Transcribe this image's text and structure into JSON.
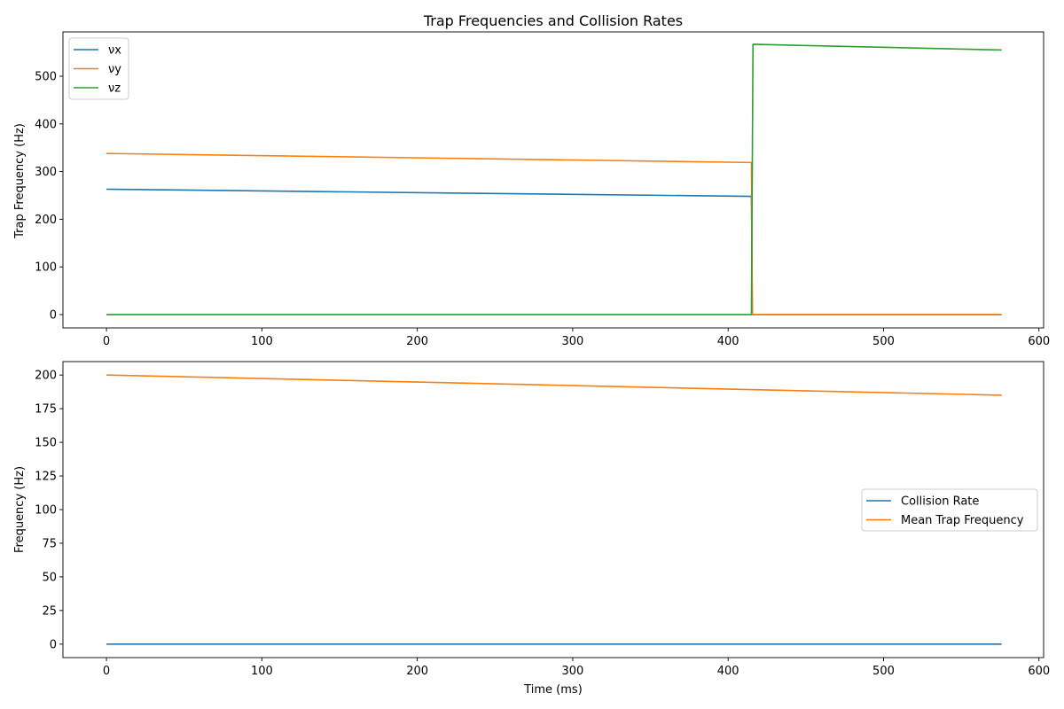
{
  "chart_data": [
    {
      "type": "line",
      "title": "Trap Frequencies and Collision Rates",
      "xlabel": "",
      "ylabel": "Trap Frequency (Hz)",
      "xlim": [
        -28,
        603
      ],
      "ylim": [
        -28,
        593
      ],
      "xticks": [
        0,
        100,
        200,
        300,
        400,
        500,
        600
      ],
      "yticks": [
        0,
        100,
        200,
        300,
        400,
        500
      ],
      "legend": "top-left",
      "series": [
        {
          "name": "νx",
          "color": "#1f77b4",
          "x": [
            0,
            415,
            415.6,
            576
          ],
          "y": [
            263,
            248,
            0,
            0
          ]
        },
        {
          "name": "νy",
          "color": "#ff7f0e",
          "x": [
            0,
            415,
            415.6,
            576
          ],
          "y": [
            338,
            319,
            0,
            0
          ]
        },
        {
          "name": "νz",
          "color": "#2ca02c",
          "x": [
            0,
            415,
            416,
            576
          ],
          "y": [
            0,
            0,
            567,
            555
          ]
        }
      ]
    },
    {
      "type": "line",
      "title": "",
      "xlabel": "Time (ms)",
      "ylabel": "Frequency (Hz)",
      "xlim": [
        -28,
        603
      ],
      "ylim": [
        -10,
        210
      ],
      "xticks": [
        0,
        100,
        200,
        300,
        400,
        500,
        600
      ],
      "yticks": [
        0,
        25,
        50,
        75,
        100,
        125,
        150,
        175,
        200
      ],
      "legend": "center-right",
      "series": [
        {
          "name": "Collision Rate",
          "color": "#1f77b4",
          "x": [
            0,
            576
          ],
          "y": [
            0,
            0
          ]
        },
        {
          "name": "Mean Trap Frequency",
          "color": "#ff7f0e",
          "x": [
            0,
            576
          ],
          "y": [
            200,
            185
          ]
        }
      ]
    }
  ]
}
